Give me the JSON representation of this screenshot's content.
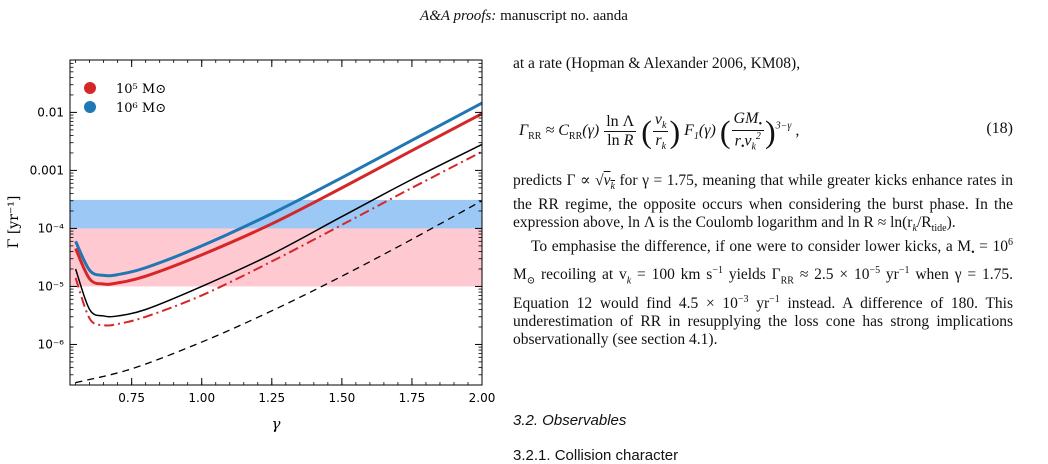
{
  "header": {
    "journal": "A&A proofs:",
    "manuscript": "manuscript no. aanda"
  },
  "figure": {
    "chart_data": {
      "type": "line",
      "xlabel": "γ",
      "ylabel": "Γ [yr⁻¹]",
      "xlim": [
        0.53,
        2.0
      ],
      "ylim": [
        2e-07,
        0.08
      ],
      "yscale": "log",
      "x_ticks": [
        "0.75",
        "1.00",
        "1.25",
        "1.50",
        "1.75",
        "2.00"
      ],
      "y_ticks": [
        "10⁻⁶",
        "10⁻⁵",
        "10⁻⁴",
        "0.001",
        "0.01"
      ],
      "legend": [
        {
          "label": "10⁵ M⊙",
          "color": "#d62728"
        },
        {
          "label": "10⁶ M⊙",
          "color": "#1f77b4"
        }
      ],
      "legend_position": "top-left",
      "bands": [
        {
          "ymin": 1e-05,
          "ymax": 0.0001,
          "color": "#ffc9d2"
        },
        {
          "ymin": 0.0001,
          "ymax": 0.00031,
          "color": "#9cc8f5"
        }
      ],
      "series": [
        {
          "style": "solid",
          "color": "#1f77b4",
          "width": 3,
          "x": [
            0.55,
            0.6,
            0.65,
            0.7,
            0.8,
            1.0,
            1.25,
            1.5,
            1.75,
            2.0
          ],
          "y": [
            6e-05,
            1.9e-05,
            1.55e-05,
            1.6e-05,
            2.1e-05,
            5e-05,
            0.00018,
            0.00075,
            0.0033,
            0.0145
          ]
        },
        {
          "style": "solid",
          "color": "#d62728",
          "width": 3,
          "x": [
            0.55,
            0.6,
            0.65,
            0.7,
            0.8,
            1.0,
            1.25,
            1.5,
            1.75,
            2.0
          ],
          "y": [
            4.5e-05,
            1.35e-05,
            1.1e-05,
            1.15e-05,
            1.5e-05,
            3.5e-05,
            0.00012,
            0.0005,
            0.0022,
            0.0095
          ]
        },
        {
          "style": "solid",
          "color": "#000000",
          "width": 1.5,
          "x": [
            0.55,
            0.6,
            0.65,
            0.7,
            0.8,
            1.0,
            1.25,
            1.5,
            1.75,
            2.0
          ],
          "y": [
            2e-05,
            4e-06,
            3.1e-06,
            3.1e-06,
            4e-06,
            1e-05,
            3.6e-05,
            0.00016,
            0.0007,
            0.0028
          ]
        },
        {
          "style": "dashdot",
          "color": "#d62728",
          "width": 2,
          "x": [
            0.55,
            0.6,
            0.65,
            0.7,
            0.8,
            1.0,
            1.25,
            1.5,
            1.75,
            2.0
          ],
          "y": [
            1.4e-05,
            2.8e-06,
            2.15e-06,
            2.25e-06,
            3e-06,
            7e-06,
            2.7e-05,
            0.000115,
            0.0005,
            0.0021
          ]
        },
        {
          "style": "dashed",
          "color": "#000000",
          "width": 1.3,
          "x": [
            0.55,
            0.75,
            1.0,
            1.25,
            1.5,
            1.75,
            2.0
          ],
          "y": [
            2.2e-07,
            3.8e-07,
            1.1e-06,
            3.8e-06,
            1.5e-05,
            6.5e-05,
            0.0003
          ]
        }
      ]
    }
  },
  "text": {
    "intro": "at a rate (Hopman & Alexander 2006, KM08),",
    "eq_number": "(18)",
    "para1_a": "predicts Γ ∝ √",
    "para1_b": "v",
    "para1_c": " for γ = 1.75, meaning that while greater kicks enhance rates in the RR regime, the opposite occurs when considering the burst phase. In the expression above, ln Λ is the Coulomb logarithm and ln R ≈ ln(r",
    "para1_d": "/R",
    "para1_e": ").",
    "para2_a": "To emphasise the difference, if one were to consider lower kicks, a M",
    "para2_b": " = 10",
    "para2_c": " M",
    "para2_d": " recoiling at v",
    "para2_e": " = 100 km s",
    "para2_f": " yields Γ",
    "para2_g": " ≈ 2.5 × 10",
    "para2_h": " yr",
    "para2_i": " when γ = 1.75. Equation 12 would find 4.5 × 10",
    "para2_j": " yr",
    "para2_k": " instead. A difference of 180. This underestimation of RR in resupplying the loss cone has strong implications observationally (see section 4.1).",
    "section": "3.2. Observables",
    "subsection": "3.2.1. Collision character"
  }
}
